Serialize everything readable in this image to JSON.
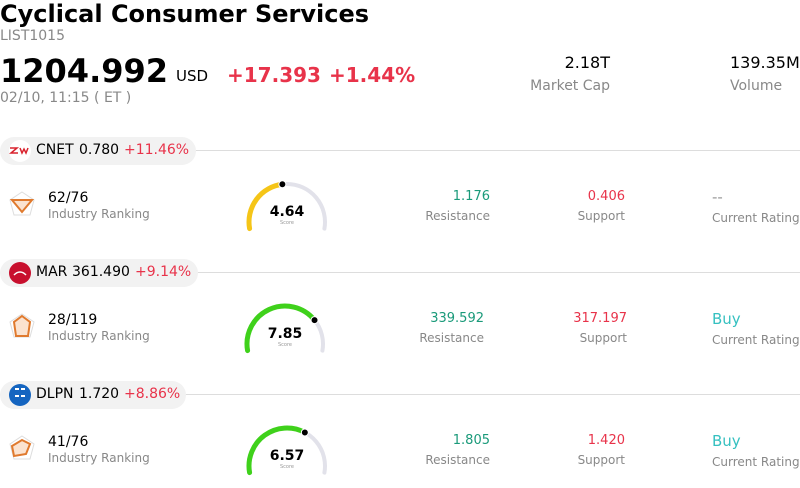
{
  "header": {
    "title": "Cyclical Consumer Services",
    "code": "LIST1015",
    "price": "1204.992",
    "currency": "USD",
    "change": "+17.393",
    "change_pct": "+1.44%",
    "time": "02/10, 11:15 ( ET )"
  },
  "stats": [
    {
      "value": "2.18T",
      "label": "Market Cap"
    },
    {
      "value": "139.35M",
      "label": "Volume"
    }
  ],
  "stocks": [
    {
      "ticker": "CNET",
      "price": "0.780",
      "change": "+11.46%",
      "ranking": "62/76",
      "ranking_label": "Industry Ranking",
      "score": "4.64",
      "score_label": "Score",
      "resistance": "1.176",
      "resistance_label": "Resistance",
      "support": "0.406",
      "support_label": "Support",
      "rating": "--",
      "rating_label": "Current Rating"
    },
    {
      "ticker": "MAR",
      "price": "361.490",
      "change": "+9.14%",
      "ranking": "28/119",
      "ranking_label": "Industry Ranking",
      "score": "7.85",
      "score_label": "Score",
      "resistance": "339.592",
      "resistance_label": "Resistance",
      "support": "317.197",
      "support_label": "Support",
      "rating": "Buy",
      "rating_label": "Current Rating"
    },
    {
      "ticker": "DLPN",
      "price": "1.720",
      "change": "+8.86%",
      "ranking": "41/76",
      "ranking_label": "Industry Ranking",
      "score": "6.57",
      "score_label": "Score",
      "resistance": "1.805",
      "resistance_label": "Resistance",
      "support": "1.420",
      "support_label": "Support",
      "rating": "Buy",
      "rating_label": "Current Rating"
    }
  ]
}
